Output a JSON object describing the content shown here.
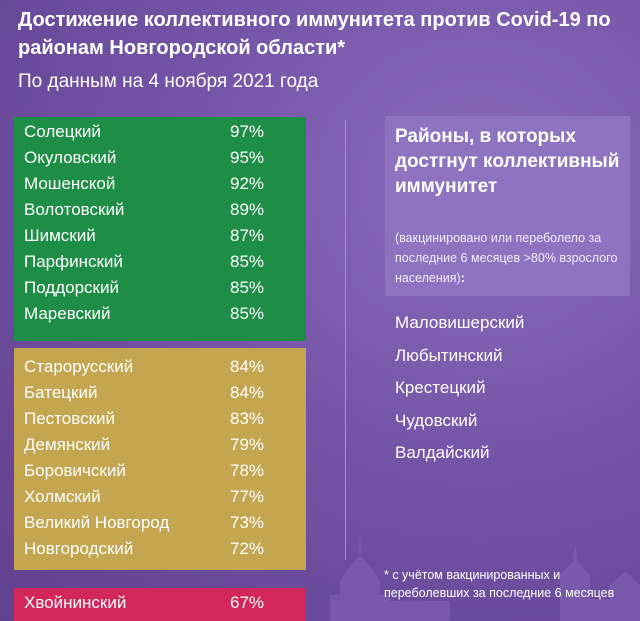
{
  "header": {
    "title": "Достижение коллективного иммунитета против Covid-19 по районам Новгородской области*",
    "subtitle": "По данным на 4 ноября 2021 года"
  },
  "groups": {
    "green": [
      {
        "name": "Солецкий",
        "pct": "97%"
      },
      {
        "name": "Окуловский",
        "pct": "95%"
      },
      {
        "name": "Мошенской",
        "pct": "92%"
      },
      {
        "name": "Волотовский",
        "pct": "89%"
      },
      {
        "name": "Шимский",
        "pct": "87%"
      },
      {
        "name": "Парфинский",
        "pct": "85%"
      },
      {
        "name": "Поддорский",
        "pct": "85%"
      },
      {
        "name": "Маревский",
        "pct": "85%"
      }
    ],
    "yellow": [
      {
        "name": "Старорусский",
        "pct": "84%"
      },
      {
        "name": "Батецкий",
        "pct": "84%"
      },
      {
        "name": "Пестовский",
        "pct": "83%"
      },
      {
        "name": "Демянский",
        "pct": "79%"
      },
      {
        "name": "Боровичский",
        "pct": "78%"
      },
      {
        "name": "Холмский",
        "pct": "77%"
      },
      {
        "name": "Великий Новгород",
        "pct": "73%"
      },
      {
        "name": "Новгородский",
        "pct": "72%"
      }
    ],
    "red": [
      {
        "name": "Хвойнинский",
        "pct": "67%"
      }
    ]
  },
  "info": {
    "title": "Районы, в которых достгнут коллективный иммунитет",
    "note": "(вакцинировано или переболело за последние 6 месяцев >80% взрослого населения)",
    "note_suffix": ":"
  },
  "achieved": [
    "Маловишерский",
    "Любытинский",
    "Крестецкий",
    "Чудовский",
    "Валдайский"
  ],
  "footnote": "* с учётом вакцинированных и переболевших за последние 6 месяцев",
  "colors": {
    "background": "#6f4fa0",
    "green": "#1e8e46",
    "yellow": "#c3a64f",
    "red": "#d3265a",
    "info_box": "#8e74c0"
  }
}
